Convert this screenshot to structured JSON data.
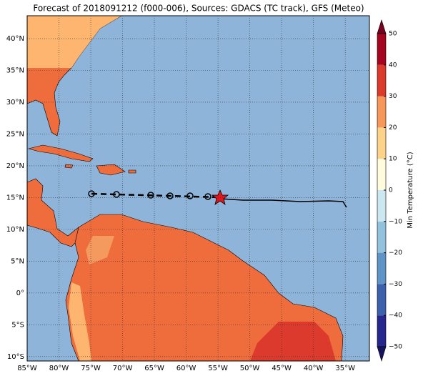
{
  "title": "Forecast of 2018091212 (f000-006), Sources: GDACS (TC track), GFS (Meteo)",
  "map": {
    "xlim": [
      -85,
      -31.2
    ],
    "ylim": [
      -10.7,
      43.6
    ],
    "grid": true,
    "ocean_color": "#8fb4d9",
    "xticks": [
      {
        "value": -85,
        "label": "85°W"
      },
      {
        "value": -80,
        "label": "80°W"
      },
      {
        "value": -75,
        "label": "75°W"
      },
      {
        "value": -70,
        "label": "70°W"
      },
      {
        "value": -65,
        "label": "65°W"
      },
      {
        "value": -60,
        "label": "60°W"
      },
      {
        "value": -55,
        "label": "55°W"
      },
      {
        "value": -50,
        "label": "50°W"
      },
      {
        "value": -45,
        "label": "45°W"
      },
      {
        "value": -40,
        "label": "40°W"
      },
      {
        "value": -35,
        "label": "35°W"
      }
    ],
    "yticks": [
      {
        "value": 40,
        "label": "40°N"
      },
      {
        "value": 35,
        "label": "35°N"
      },
      {
        "value": 30,
        "label": "30°N"
      },
      {
        "value": 25,
        "label": "25°N"
      },
      {
        "value": 20,
        "label": "20°N"
      },
      {
        "value": 15,
        "label": "15°N"
      },
      {
        "value": 10,
        "label": "10°N"
      },
      {
        "value": 5,
        "label": "5°N"
      },
      {
        "value": 0,
        "label": "0°"
      },
      {
        "value": -5,
        "label": "5°S"
      },
      {
        "value": -10,
        "label": "10°S"
      }
    ]
  },
  "colorbar": {
    "label": "Min Temperature (°C)",
    "lim": [
      -50,
      50
    ],
    "ticks": [
      {
        "value": -50,
        "label": "−50"
      },
      {
        "value": -40,
        "label": "−40"
      },
      {
        "value": -30,
        "label": "−30"
      },
      {
        "value": -20,
        "label": "−20"
      },
      {
        "value": -10,
        "label": "−10"
      },
      0,
      10,
      20,
      30,
      40,
      50
    ],
    "colors": [
      "#26268f",
      "#3c62ae",
      "#5f95c6",
      "#92c2de",
      "#cbe8f1",
      "#fffbdc",
      "#fdd38a",
      "#f9975a",
      "#dc3b2c",
      "#a6051f"
    ],
    "under_color": "#15155f",
    "over_color": "#7a0020"
  }
}
